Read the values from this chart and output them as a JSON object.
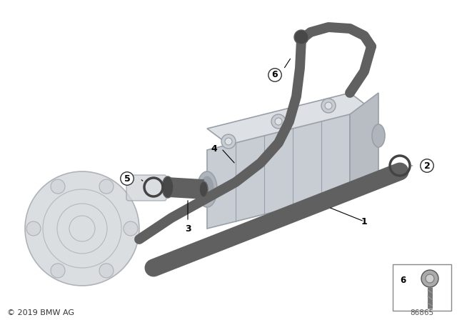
{
  "background_color": "#ffffff",
  "copyright": "© 2019 BMW AG",
  "diagram_number": "86865",
  "dark_gray": "#555555",
  "pipe_color": "#606060",
  "component_gray": "#bbbbbb",
  "component_face": "#d8d8d8",
  "component_edge": "#aaaaaa",
  "cooler_face": "#dde0e4",
  "cooler_edge": "#9aa0a8",
  "pump_face": "#d0d4d8",
  "pump_edge": "#9aa0a8",
  "label_fontsize": 9,
  "small_fontsize": 7.5,
  "lw_pipe_1": 18,
  "lw_pipe_3": 16,
  "lw_pipe_4": 10
}
